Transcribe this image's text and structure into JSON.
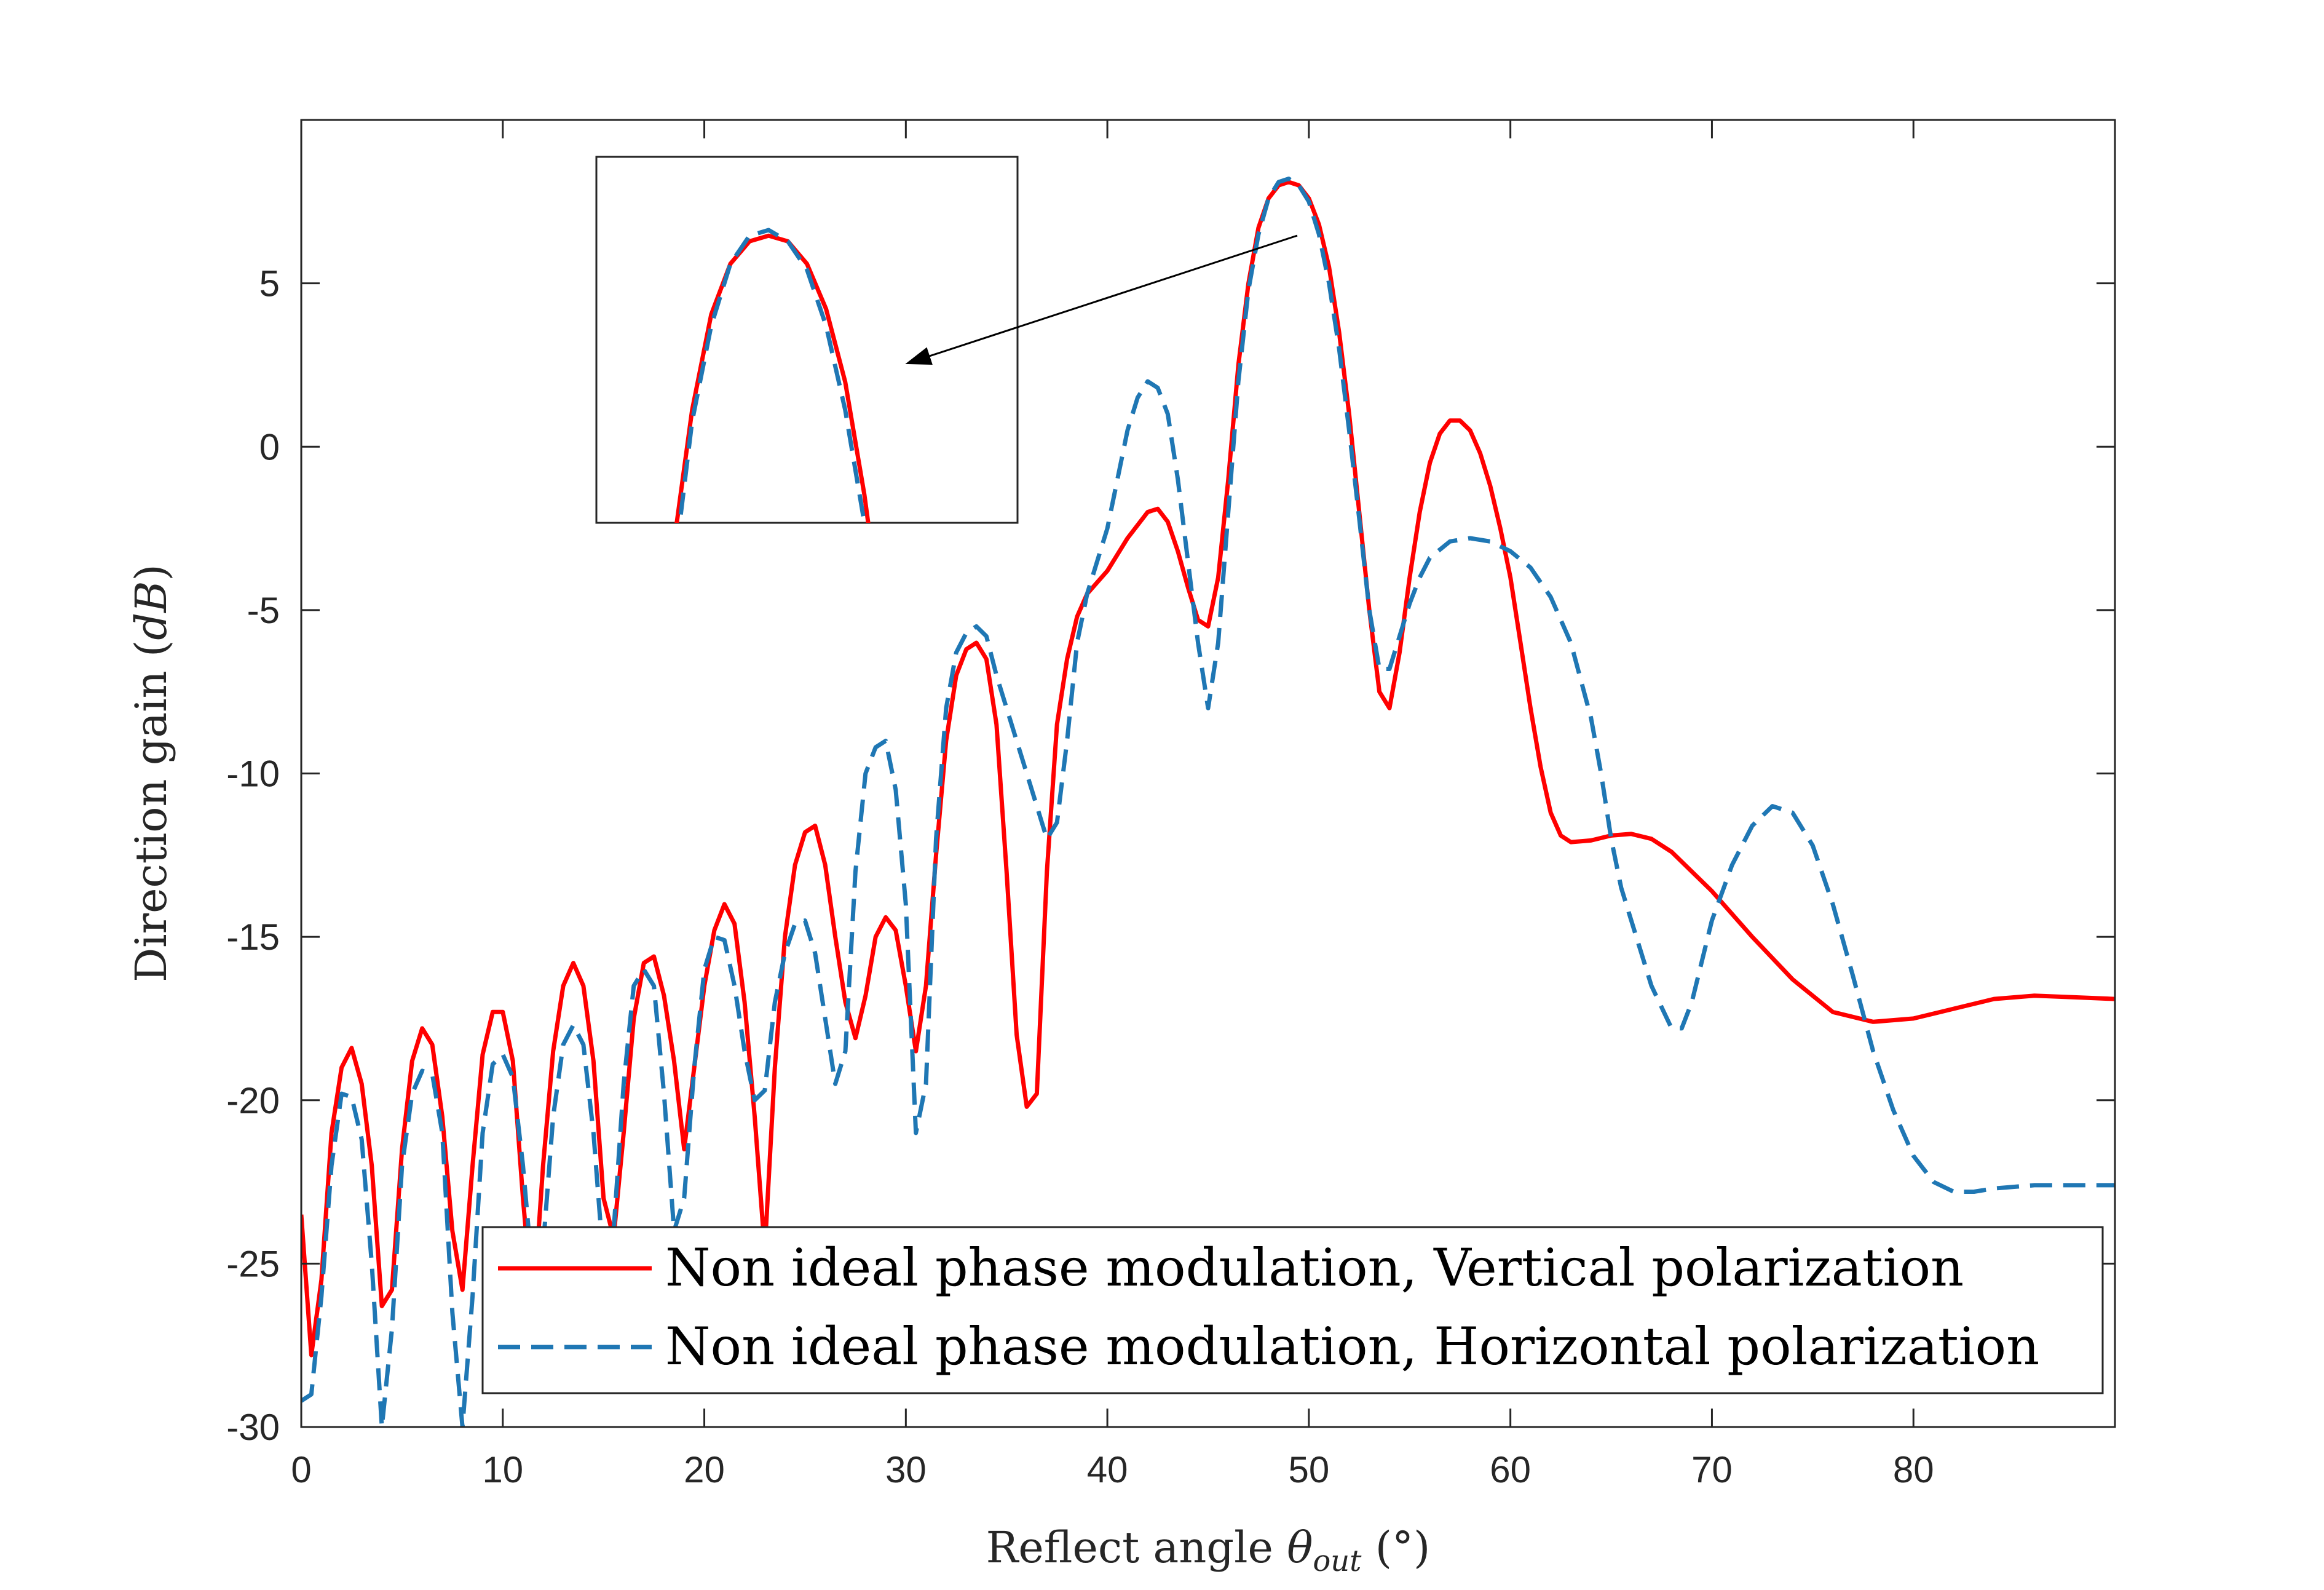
{
  "chart_data": {
    "type": "line",
    "title": "",
    "xlabel": "Reflect angle θout (°)",
    "xlabel_parts": {
      "prefix": "Reflect angle ",
      "symbol": "θ",
      "subscript": "out",
      "suffix": " (°)"
    },
    "ylabel": "Direction gain (dB)",
    "ylabel_parts": {
      "prefix": "Direction gain (",
      "unit": "dB",
      "suffix": ")"
    },
    "xlim": [
      0,
      90
    ],
    "ylim": [
      -30,
      10
    ],
    "xticks": [
      "0",
      "10",
      "20",
      "30",
      "40",
      "50",
      "60",
      "70",
      "80"
    ],
    "yticks": [
      "5",
      "0",
      "-5",
      "-10",
      "-15",
      "-20",
      "-25",
      "-30"
    ],
    "grid": false,
    "legend_position": "bottom-right",
    "series": [
      {
        "name": "Non ideal phase modulation, Vertical polarization",
        "color": "#ff0000",
        "style": "solid",
        "points": [
          [
            0,
            -23.5
          ],
          [
            0.5,
            -27.8
          ],
          [
            1,
            -25.5
          ],
          [
            1.5,
            -21
          ],
          [
            2,
            -19
          ],
          [
            2.5,
            -18.4
          ],
          [
            3,
            -19.5
          ],
          [
            3.5,
            -22
          ],
          [
            4,
            -26.3
          ],
          [
            4.5,
            -25.8
          ],
          [
            5,
            -21.5
          ],
          [
            5.5,
            -18.8
          ],
          [
            6,
            -17.8
          ],
          [
            6.5,
            -18.3
          ],
          [
            7,
            -20.5
          ],
          [
            7.5,
            -24
          ],
          [
            8,
            -25.8
          ],
          [
            8.5,
            -22
          ],
          [
            9,
            -18.6
          ],
          [
            9.5,
            -17.3
          ],
          [
            10,
            -17.3
          ],
          [
            10.5,
            -18.8
          ],
          [
            11,
            -23
          ],
          [
            11.5,
            -26.5
          ],
          [
            12,
            -22
          ],
          [
            12.5,
            -18.5
          ],
          [
            13,
            -16.5
          ],
          [
            13.5,
            -15.8
          ],
          [
            14,
            -16.5
          ],
          [
            14.5,
            -18.8
          ],
          [
            15,
            -23
          ],
          [
            15.5,
            -24.2
          ],
          [
            16,
            -21
          ],
          [
            16.5,
            -17.5
          ],
          [
            17,
            -15.8
          ],
          [
            17.5,
            -15.6
          ],
          [
            18,
            -16.8
          ],
          [
            18.5,
            -18.8
          ],
          [
            19,
            -21.5
          ],
          [
            19.5,
            -19
          ],
          [
            20,
            -16.5
          ],
          [
            20.5,
            -14.8
          ],
          [
            21,
            -14
          ],
          [
            21.5,
            -14.6
          ],
          [
            22,
            -17
          ],
          [
            22.5,
            -20.5
          ],
          [
            23,
            -24.6
          ],
          [
            23.5,
            -19
          ],
          [
            24,
            -15
          ],
          [
            24.5,
            -12.8
          ],
          [
            25,
            -11.8
          ],
          [
            25.5,
            -11.6
          ],
          [
            26,
            -12.8
          ],
          [
            26.5,
            -15
          ],
          [
            27,
            -17
          ],
          [
            27.5,
            -18.1
          ],
          [
            28,
            -16.8
          ],
          [
            28.5,
            -15
          ],
          [
            29,
            -14.4
          ],
          [
            29.5,
            -14.8
          ],
          [
            30,
            -16.5
          ],
          [
            30.5,
            -18.5
          ],
          [
            31,
            -16.5
          ],
          [
            31.5,
            -12.5
          ],
          [
            32,
            -9
          ],
          [
            32.5,
            -7
          ],
          [
            33,
            -6.2
          ],
          [
            33.5,
            -6
          ],
          [
            34,
            -6.5
          ],
          [
            34.5,
            -8.5
          ],
          [
            35,
            -13
          ],
          [
            35.5,
            -18
          ],
          [
            36,
            -20.2
          ],
          [
            36.5,
            -19.8
          ],
          [
            37,
            -13
          ],
          [
            37.5,
            -8.5
          ],
          [
            38,
            -6.5
          ],
          [
            38.5,
            -5.2
          ],
          [
            39,
            -4.5
          ],
          [
            40,
            -3.8
          ],
          [
            41,
            -2.8
          ],
          [
            42,
            -2
          ],
          [
            42.5,
            -1.9
          ],
          [
            43,
            -2.3
          ],
          [
            43.5,
            -3.2
          ],
          [
            44,
            -4.3
          ],
          [
            44.5,
            -5.3
          ],
          [
            45,
            -5.5
          ],
          [
            45.5,
            -4
          ],
          [
            46,
            -1
          ],
          [
            46.5,
            2.5
          ],
          [
            47,
            5
          ],
          [
            47.5,
            6.7
          ],
          [
            48,
            7.6
          ],
          [
            48.5,
            8
          ],
          [
            49,
            8.1
          ],
          [
            49.5,
            8
          ],
          [
            50,
            7.6
          ],
          [
            50.5,
            6.8
          ],
          [
            51,
            5.5
          ],
          [
            51.5,
            3.5
          ],
          [
            52,
            1
          ],
          [
            52.5,
            -2
          ],
          [
            53,
            -5
          ],
          [
            53.5,
            -7.5
          ],
          [
            54,
            -8
          ],
          [
            54.5,
            -6.3
          ],
          [
            55,
            -4
          ],
          [
            55.5,
            -2
          ],
          [
            56,
            -0.5
          ],
          [
            56.5,
            0.4
          ],
          [
            57,
            0.8
          ],
          [
            57.5,
            0.8
          ],
          [
            58,
            0.5
          ],
          [
            58.5,
            -0.2
          ],
          [
            59,
            -1.2
          ],
          [
            59.5,
            -2.5
          ],
          [
            60,
            -4
          ],
          [
            60.5,
            -6
          ],
          [
            61,
            -8
          ],
          [
            61.5,
            -9.8
          ],
          [
            62,
            -11.2
          ],
          [
            62.5,
            -11.9
          ],
          [
            63,
            -12.1
          ],
          [
            64,
            -12.05
          ],
          [
            65,
            -11.9
          ],
          [
            66,
            -11.85
          ],
          [
            67,
            -12
          ],
          [
            68,
            -12.4
          ],
          [
            70,
            -13.6
          ],
          [
            72,
            -15
          ],
          [
            74,
            -16.3
          ],
          [
            76,
            -17.3
          ],
          [
            78,
            -17.6
          ],
          [
            80,
            -17.5
          ],
          [
            82,
            -17.2
          ],
          [
            84,
            -16.9
          ],
          [
            86,
            -16.8
          ],
          [
            88,
            -16.85
          ],
          [
            90,
            -16.9
          ]
        ]
      },
      {
        "name": "Non ideal phase modulation, Horizontal polarization",
        "color": "#1f77b4",
        "style": "dashed",
        "points": [
          [
            0,
            -29.2
          ],
          [
            0.5,
            -29
          ],
          [
            1,
            -26
          ],
          [
            1.5,
            -22
          ],
          [
            2,
            -19.8
          ],
          [
            2.5,
            -19.9
          ],
          [
            3,
            -21.2
          ],
          [
            3.5,
            -25
          ],
          [
            4,
            -30
          ],
          [
            4.5,
            -27
          ],
          [
            5,
            -22
          ],
          [
            5.5,
            -19.8
          ],
          [
            6,
            -19.1
          ],
          [
            6.5,
            -19.2
          ],
          [
            7,
            -21
          ],
          [
            7.5,
            -26.5
          ],
          [
            8,
            -30
          ],
          [
            8.5,
            -26
          ],
          [
            9,
            -21
          ],
          [
            9.5,
            -18.9
          ],
          [
            10,
            -18.6
          ],
          [
            10.5,
            -19.3
          ],
          [
            11,
            -22
          ],
          [
            11.5,
            -25.5
          ],
          [
            12,
            -24.5
          ],
          [
            12.5,
            -20.5
          ],
          [
            13,
            -18.3
          ],
          [
            13.5,
            -17.7
          ],
          [
            14,
            -18.3
          ],
          [
            14.5,
            -21
          ],
          [
            15,
            -25
          ],
          [
            15.5,
            -24
          ],
          [
            16,
            -19.5
          ],
          [
            16.5,
            -16.5
          ],
          [
            17,
            -16
          ],
          [
            17.5,
            -16.5
          ],
          [
            18,
            -19.8
          ],
          [
            18.5,
            -24
          ],
          [
            19,
            -23
          ],
          [
            19.5,
            -19
          ],
          [
            20,
            -16
          ],
          [
            20.5,
            -15
          ],
          [
            21,
            -15.1
          ],
          [
            21.5,
            -16.5
          ],
          [
            22,
            -18.5
          ],
          [
            22.5,
            -20
          ],
          [
            23,
            -19.7
          ],
          [
            23.5,
            -17
          ],
          [
            24,
            -15.5
          ],
          [
            24.5,
            -14.6
          ],
          [
            25,
            -14.5
          ],
          [
            25.5,
            -15.5
          ],
          [
            26,
            -17.5
          ],
          [
            26.5,
            -19.5
          ],
          [
            27,
            -18.5
          ],
          [
            27.5,
            -13
          ],
          [
            28,
            -10
          ],
          [
            28.5,
            -9.2
          ],
          [
            29,
            -9
          ],
          [
            29.5,
            -10.5
          ],
          [
            30,
            -14
          ],
          [
            30.5,
            -21
          ],
          [
            31,
            -19.5
          ],
          [
            31.5,
            -12
          ],
          [
            32,
            -8
          ],
          [
            32.5,
            -6.3
          ],
          [
            33,
            -5.7
          ],
          [
            33.5,
            -5.5
          ],
          [
            34,
            -5.8
          ],
          [
            34.5,
            -7
          ],
          [
            35,
            -8
          ],
          [
            35.5,
            -9
          ],
          [
            36,
            -10
          ],
          [
            36.5,
            -11
          ],
          [
            37,
            -12
          ],
          [
            37.5,
            -11.5
          ],
          [
            38,
            -9
          ],
          [
            38.5,
            -6
          ],
          [
            39,
            -4.5
          ],
          [
            39.5,
            -3.5
          ],
          [
            40,
            -2.5
          ],
          [
            40.5,
            -1
          ],
          [
            41,
            0.5
          ],
          [
            41.5,
            1.5
          ],
          [
            42,
            2
          ],
          [
            42.5,
            1.8
          ],
          [
            43,
            1
          ],
          [
            43.5,
            -1
          ],
          [
            44,
            -3.5
          ],
          [
            44.5,
            -6
          ],
          [
            45,
            -8
          ],
          [
            45.5,
            -6
          ],
          [
            46,
            -2
          ],
          [
            46.5,
            2
          ],
          [
            47,
            4.8
          ],
          [
            47.5,
            6.5
          ],
          [
            48,
            7.6
          ],
          [
            48.5,
            8.1
          ],
          [
            49,
            8.2
          ],
          [
            49.5,
            8
          ],
          [
            50,
            7.5
          ],
          [
            50.5,
            6.5
          ],
          [
            51,
            5
          ],
          [
            51.5,
            3
          ],
          [
            52,
            0.5
          ],
          [
            52.5,
            -2.2
          ],
          [
            53,
            -5
          ],
          [
            53.5,
            -6.8
          ],
          [
            54,
            -6.8
          ],
          [
            54.5,
            -5.8
          ],
          [
            55,
            -4.8
          ],
          [
            55.5,
            -4
          ],
          [
            56,
            -3.4
          ],
          [
            57,
            -2.9
          ],
          [
            58,
            -2.8
          ],
          [
            59,
            -2.9
          ],
          [
            60,
            -3.2
          ],
          [
            61,
            -3.7
          ],
          [
            62,
            -4.6
          ],
          [
            63,
            -6
          ],
          [
            64,
            -8.3
          ],
          [
            64.5,
            -10
          ],
          [
            65,
            -12
          ],
          [
            65.5,
            -13.5
          ],
          [
            66,
            -14.5
          ],
          [
            67,
            -16.5
          ],
          [
            68,
            -17.8
          ],
          [
            68.5,
            -17.8
          ],
          [
            69,
            -17
          ],
          [
            70,
            -14.5
          ],
          [
            71,
            -12.8
          ],
          [
            72,
            -11.6
          ],
          [
            73,
            -11
          ],
          [
            74,
            -11.2
          ],
          [
            75,
            -12.2
          ],
          [
            76,
            -14
          ],
          [
            77,
            -16.2
          ],
          [
            78,
            -18.5
          ],
          [
            79,
            -20.3
          ],
          [
            80,
            -21.7
          ],
          [
            81,
            -22.5
          ],
          [
            82,
            -22.8
          ],
          [
            83,
            -22.8
          ],
          [
            84,
            -22.7
          ],
          [
            86,
            -22.6
          ],
          [
            88,
            -22.6
          ],
          [
            90,
            -22.6
          ]
        ]
      }
    ],
    "inset": {
      "description_for_axes": "zoomed main lobe",
      "xlim": [
        44.5,
        55.5
      ],
      "ylim": [
        3,
        9.5
      ],
      "arrow_from": [
        49.3,
        6.5
      ],
      "arrow_to_inset": true
    }
  }
}
